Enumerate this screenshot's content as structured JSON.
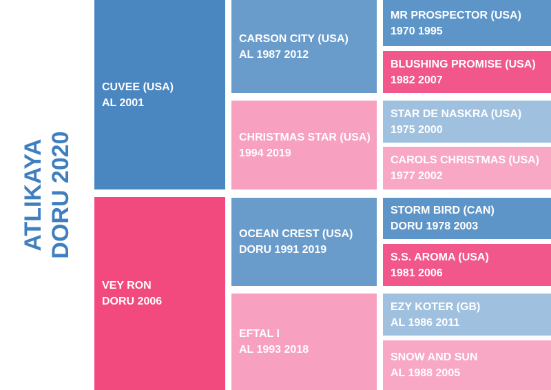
{
  "subject": {
    "name": "ATLIKAYA",
    "detail": "DORU 2020"
  },
  "generations": [
    [
      {
        "name": "CUVEE (USA)",
        "detail": "AL 2001"
      },
      {
        "name": "VEY RON",
        "detail": "DORU 2006"
      }
    ],
    [
      {
        "name": "CARSON CITY (USA)",
        "detail": "AL 1987 2012"
      },
      {
        "name": "CHRISTMAS STAR (USA)",
        "detail": "1994 2019"
      },
      {
        "name": "OCEAN CREST (USA)",
        "detail": "DORU 1991 2019"
      },
      {
        "name": "EFTAL I",
        "detail": "AL 1993 2018"
      }
    ],
    [
      {
        "name": "MR PROSPECTOR (USA)",
        "detail": "1970 1995"
      },
      {
        "name": "BLUSHING PROMISE (USA)",
        "detail": "1982 2007"
      },
      {
        "name": "STAR DE NASKRA (USA)",
        "detail": "1975 2000"
      },
      {
        "name": "CAROLS CHRISTMAS (USA)",
        "detail": "1977 2002"
      },
      {
        "name": "STORM BIRD (CAN)",
        "detail": "DORU 1978 2003"
      },
      {
        "name": "S.S. AROMA (USA)",
        "detail": "1981 2006"
      },
      {
        "name": "EZY KOTER (GB)",
        "detail": "AL 1986 2011"
      },
      {
        "name": "SNOW AND SUN",
        "detail": "AL 1988 2005"
      }
    ]
  ]
}
